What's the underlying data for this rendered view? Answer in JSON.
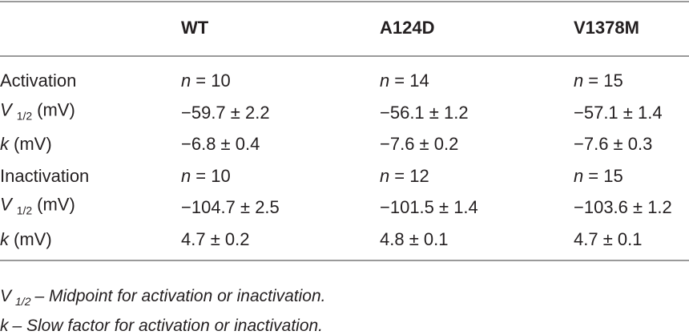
{
  "table": {
    "header": [
      "WT",
      "A124D",
      "V1378M"
    ],
    "rows": [
      {
        "label": {
          "text": "Activation"
        },
        "cells": [
          {
            "sym": "n",
            "text": "= 10"
          },
          {
            "sym": "n",
            "text": "= 14"
          },
          {
            "sym": "n",
            "text": "= 15"
          }
        ]
      },
      {
        "label": {
          "sym": "V",
          "sub": "1/2",
          "text": "(mV)"
        },
        "cells": [
          {
            "text": "−59.7 ± 2.2"
          },
          {
            "text": "−56.1 ± 1.2"
          },
          {
            "text": "−57.1 ± 1.4"
          }
        ]
      },
      {
        "label": {
          "sym": "k",
          "text": "(mV)"
        },
        "cells": [
          {
            "text": "−6.8 ± 0.4"
          },
          {
            "text": "−7.6 ± 0.2"
          },
          {
            "text": "−7.6 ± 0.3"
          }
        ]
      },
      {
        "label": {
          "text": "Inactivation"
        },
        "cells": [
          {
            "sym": "n",
            "text": "= 10"
          },
          {
            "sym": "n",
            "text": "= 12"
          },
          {
            "sym": "n",
            "text": "= 15"
          }
        ]
      },
      {
        "label": {
          "sym": "V",
          "sub": "1/2",
          "text": "(mV)"
        },
        "cells": [
          {
            "text": "−104.7 ± 2.5"
          },
          {
            "text": "−101.5 ± 1.4"
          },
          {
            "text": "−103.6 ± 1.2"
          }
        ]
      },
      {
        "label": {
          "sym": "k",
          "text": "(mV)"
        },
        "cells": [
          {
            "text": "4.7 ± 0.2"
          },
          {
            "text": "4.8 ± 0.1"
          },
          {
            "text": "4.7 ± 0.1"
          }
        ]
      }
    ]
  },
  "footnotes": [
    {
      "sym": "V",
      "sub": "1/2",
      "text": "– Midpoint for activation or inactivation."
    },
    {
      "sym": "k",
      "text": "– Slow factor for activation or inactivation."
    }
  ]
}
